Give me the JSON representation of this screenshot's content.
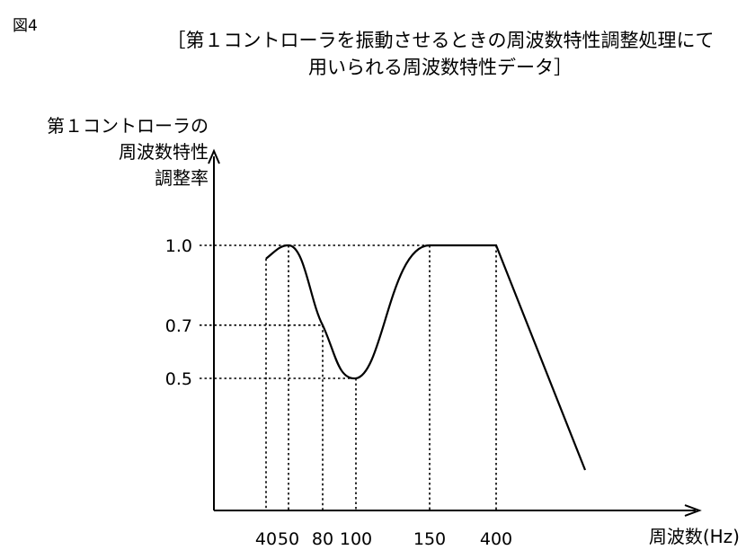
{
  "figure_label": "図4",
  "chart_data": {
    "type": "line",
    "title": [
      "［第１コントローラを振動させるときの周波数特性調整処理にて",
      "用いられる周波数特性データ］"
    ],
    "ylabel": [
      "第１コントローラの",
      "周波数特性",
      "調整率"
    ],
    "xlabel": "周波数(Hz)",
    "x_ticks": [
      "40",
      "50",
      "80",
      "100",
      "150",
      "400"
    ],
    "y_ticks": [
      "1.0",
      "0.7",
      "0.5"
    ],
    "y_tick_values": [
      1.0,
      0.7,
      0.5
    ],
    "points": [
      {
        "x": "40",
        "y": 0.95
      },
      {
        "x": "50",
        "y": 1.0
      },
      {
        "x": "80",
        "y": 0.7
      },
      {
        "x": "100",
        "y": 0.5
      },
      {
        "x": "150",
        "y": 1.0
      },
      {
        "x": "400",
        "y": 1.0
      }
    ],
    "tail": "decreasing beyond 400",
    "grid": false
  }
}
